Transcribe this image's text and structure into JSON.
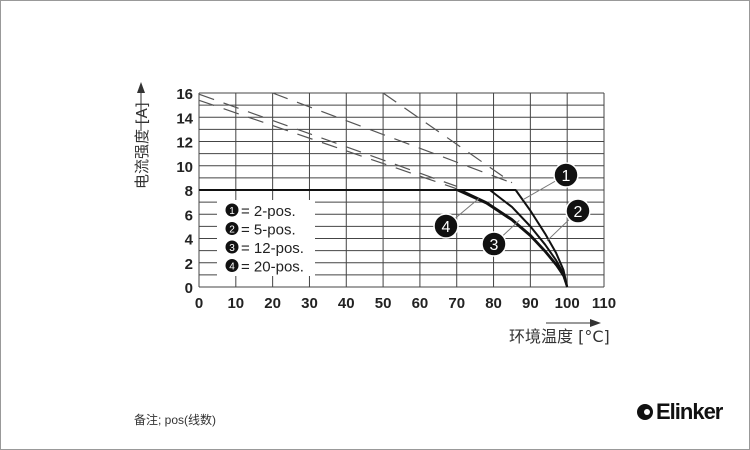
{
  "chart_data": {
    "type": "line",
    "xlabel": "环境温度 [°C]",
    "ylabel": "电流强度 [A]",
    "xlim": [
      0,
      110
    ],
    "ylim": [
      0,
      16
    ],
    "xticks": [
      "0",
      "10",
      "20",
      "30",
      "40",
      "50",
      "60",
      "70",
      "80",
      "90",
      "100",
      "110"
    ],
    "yticks": [
      "0",
      "2",
      "4",
      "6",
      "8",
      "10",
      "12",
      "14",
      "16"
    ],
    "grid": true,
    "legend_position": "left",
    "series": [
      {
        "name": "2-pos.",
        "marker": "1",
        "x": [
          0,
          86,
          90,
          94,
          97,
          99,
          100
        ],
        "y": [
          8,
          8,
          6.3,
          4.4,
          2.8,
          1.4,
          0
        ]
      },
      {
        "name": "5-pos.",
        "marker": "2",
        "x": [
          0,
          79,
          85,
          90,
          94,
          97,
          99,
          100
        ],
        "y": [
          8,
          8,
          6.6,
          5.0,
          3.5,
          2.2,
          1.1,
          0
        ]
      },
      {
        "name": "12-pos.",
        "marker": "3",
        "x": [
          0,
          71,
          78,
          85,
          90,
          94,
          97,
          99,
          100
        ],
        "y": [
          8,
          8,
          7.0,
          5.6,
          4.3,
          3.0,
          1.9,
          0.9,
          0
        ]
      },
      {
        "name": "20-pos.",
        "marker": "4",
        "x": [
          0,
          70,
          78,
          85,
          90,
          94,
          97,
          99,
          100
        ],
        "y": [
          8,
          8,
          6.9,
          5.5,
          4.2,
          2.9,
          1.8,
          0.9,
          0
        ]
      }
    ],
    "dashed_series": [
      {
        "x": [
          0,
          70
        ],
        "y": [
          15.9,
          8.3
        ]
      },
      {
        "x": [
          0,
          70
        ],
        "y": [
          15.4,
          8.1
        ]
      },
      {
        "x": [
          20,
          84
        ],
        "y": [
          16,
          8.7
        ]
      },
      {
        "x": [
          50,
          85
        ],
        "y": [
          16,
          8.6
        ]
      }
    ],
    "legend": [
      {
        "marker": "1",
        "label": "= 2-pos."
      },
      {
        "marker": "2",
        "label": "= 5-pos."
      },
      {
        "marker": "3",
        "label": "= 12-pos."
      },
      {
        "marker": "4",
        "label": "= 20-pos."
      }
    ]
  },
  "note": "备注; pos(线数)",
  "logo": "Elinker"
}
